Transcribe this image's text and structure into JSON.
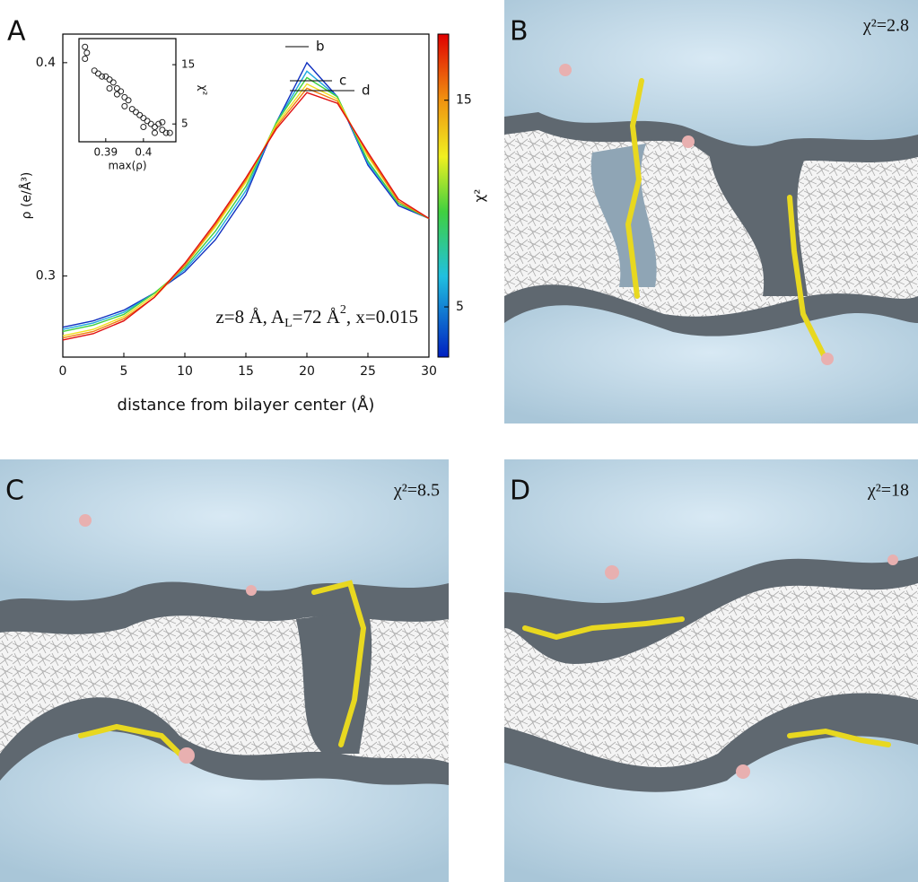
{
  "panel_labels": [
    "A",
    "B",
    "C",
    "D"
  ],
  "panel_captions": {
    "B": "χ²=2.8",
    "C": "χ²=8.5",
    "D": "χ²=18"
  },
  "chart_data": [
    {
      "type": "line",
      "x": [
        0,
        2.5,
        5,
        7.5,
        10,
        12.5,
        15,
        17.5,
        20,
        22.5,
        25,
        27.5,
        30
      ],
      "series": [
        {
          "color": "#1030c0",
          "values": [
            0.276,
            0.279,
            0.284,
            0.292,
            0.302,
            0.317,
            0.338,
            0.372,
            0.4,
            0.384,
            0.352,
            0.333,
            0.327
          ]
        },
        {
          "color": "#20a8e0",
          "values": [
            0.275,
            0.278,
            0.283,
            0.292,
            0.303,
            0.319,
            0.34,
            0.372,
            0.396,
            0.384,
            0.353,
            0.334,
            0.327
          ]
        },
        {
          "color": "#40d040",
          "values": [
            0.274,
            0.277,
            0.282,
            0.292,
            0.304,
            0.321,
            0.342,
            0.372,
            0.393,
            0.384,
            0.354,
            0.334,
            0.327
          ]
        },
        {
          "color": "#f0e020",
          "values": [
            0.272,
            0.275,
            0.281,
            0.291,
            0.305,
            0.323,
            0.344,
            0.371,
            0.39,
            0.383,
            0.356,
            0.335,
            0.327
          ]
        },
        {
          "color": "#f08010",
          "values": [
            0.271,
            0.274,
            0.28,
            0.29,
            0.305,
            0.324,
            0.345,
            0.37,
            0.388,
            0.382,
            0.357,
            0.335,
            0.327
          ]
        },
        {
          "color": "#e01010",
          "values": [
            0.27,
            0.273,
            0.279,
            0.29,
            0.306,
            0.325,
            0.346,
            0.369,
            0.386,
            0.381,
            0.358,
            0.336,
            0.327
          ]
        }
      ],
      "xlim": [
        0,
        30
      ],
      "xticks": [
        0,
        5,
        10,
        15,
        20,
        25,
        30
      ],
      "ylim": [
        0.262,
        0.4134
      ],
      "yticks": [
        0.3,
        0.4
      ],
      "xlabel": "distance from bilayer center (Å)",
      "ylabel": "ρ (e/Å³)",
      "annotations": [
        "b",
        "c",
        "d"
      ],
      "condition_text": [
        "z=8 Å, A",
        "L",
        "=72 Å",
        "2",
        ", x=0.015"
      ],
      "colorbar": {
        "label": "χ²",
        "lim": [
          2.57,
          18.2
        ],
        "ticks": [
          5,
          15
        ]
      }
    },
    {
      "type": "scatter",
      "color": "#222222",
      "x": [
        0.3845,
        0.385,
        0.3845,
        0.387,
        0.388,
        0.389,
        0.39,
        0.391,
        0.391,
        0.392,
        0.393,
        0.394,
        0.393,
        0.395,
        0.396,
        0.395,
        0.397,
        0.398,
        0.399,
        0.4,
        0.401,
        0.4,
        0.402,
        0.403,
        0.404,
        0.405,
        0.403,
        0.406,
        0.407,
        0.405
      ],
      "values": [
        18,
        17,
        16,
        14,
        13.5,
        13,
        13,
        12.5,
        11,
        12,
        11,
        10.5,
        10,
        9.5,
        9,
        8,
        7.5,
        7,
        6.5,
        6,
        5.5,
        4.5,
        5,
        4.5,
        5,
        4,
        3.5,
        3.5,
        3.5,
        5.3
      ],
      "xlim": [
        0.3829,
        0.4086
      ],
      "xticks": [
        0.39,
        0.4
      ],
      "ylim": [
        2.0,
        19.4
      ],
      "yticks": [
        5,
        15
      ],
      "xlabel": "max(ρ)",
      "ylabel": "χ²"
    }
  ]
}
